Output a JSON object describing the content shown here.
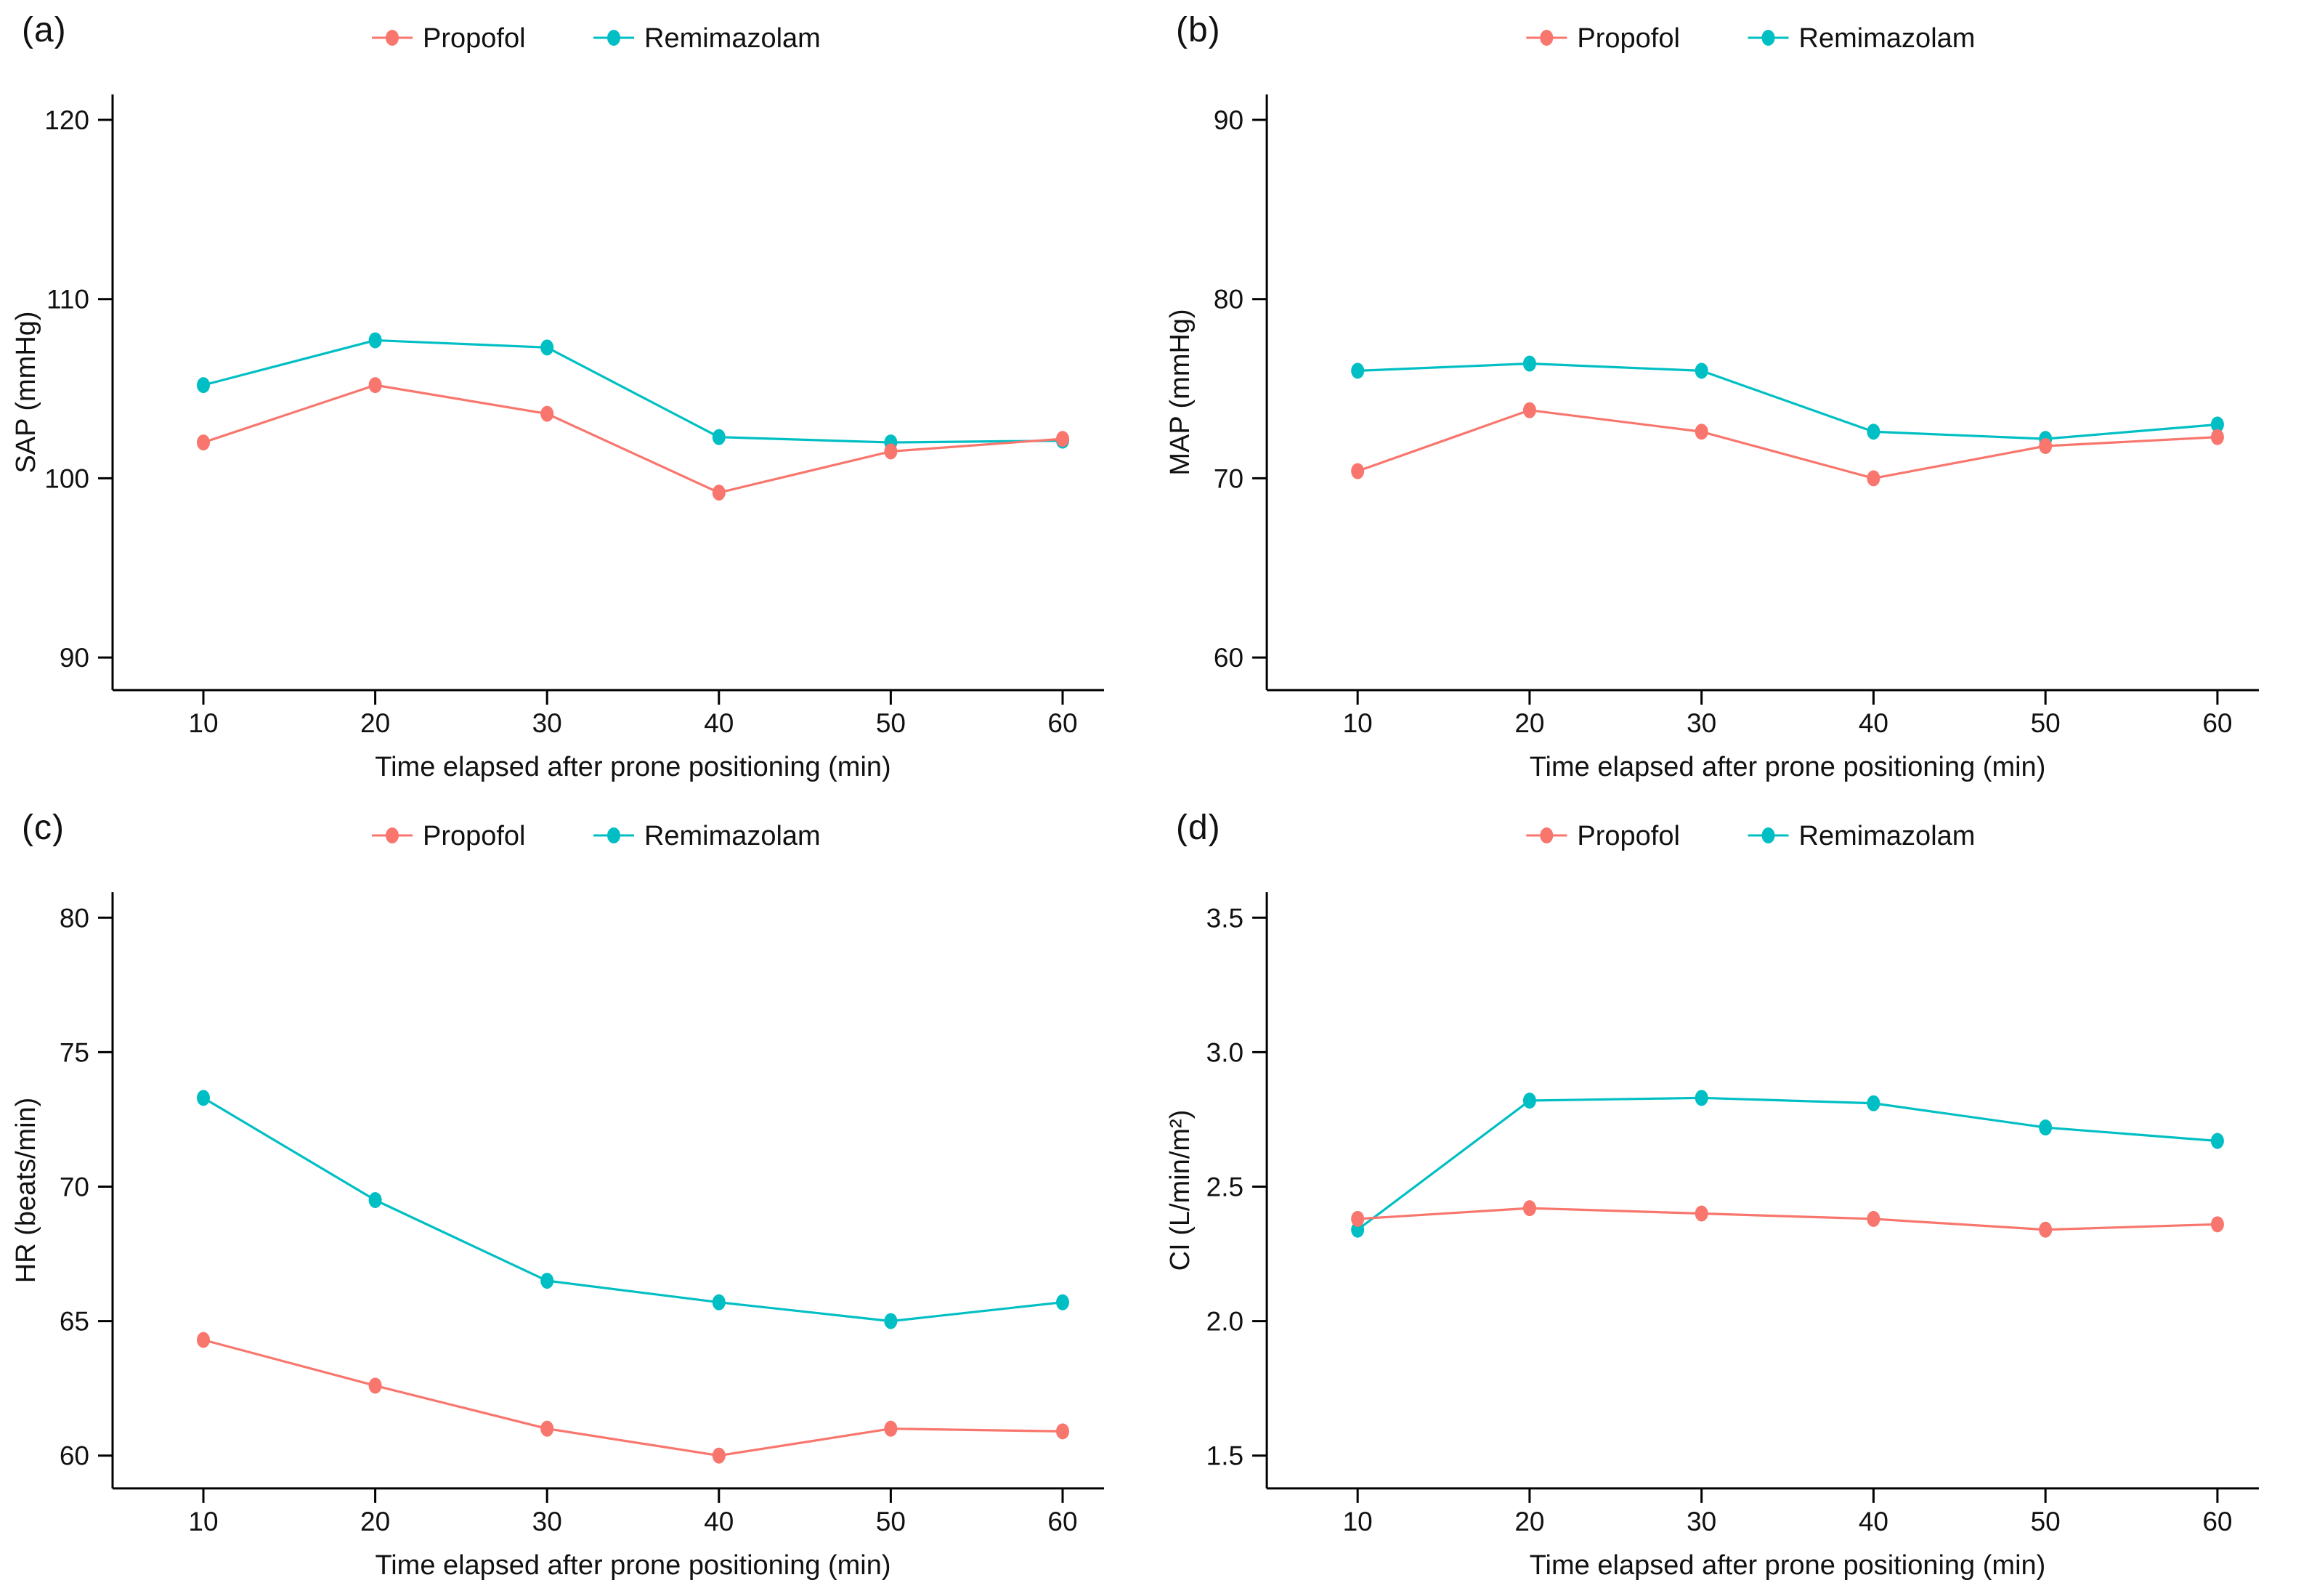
{
  "figure": {
    "background": "#ffffff",
    "axis_color": "#000000",
    "text_color": "#111111",
    "legend": [
      {
        "label": "Propofol",
        "color": "#F8766D"
      },
      {
        "label": "Remimazolam",
        "color": "#00BFC4"
      }
    ]
  },
  "chart_data": [
    {
      "type": "line",
      "panel": "(a)",
      "ylabel": "SAP (mmHg)",
      "xlabel": "Time elapsed after prone positioning (min)",
      "x": [
        10,
        20,
        30,
        40,
        50,
        60
      ],
      "xtick_labels": [
        "10",
        "20",
        "30",
        "40",
        "50",
        "60"
      ],
      "yticks": [
        90,
        100,
        110,
        120
      ],
      "ytick_labels": [
        "90",
        "100",
        "110",
        "120"
      ],
      "ylim": [
        88.18,
        121.42
      ],
      "grid": false,
      "legend_position": "top",
      "series": [
        {
          "name": "Propofol",
          "color": "#F8766D",
          "values": [
            102.0,
            105.2,
            103.6,
            99.2,
            101.5,
            102.2
          ]
        },
        {
          "name": "Remimazolam",
          "color": "#00BFC4",
          "values": [
            105.2,
            107.7,
            107.3,
            102.3,
            102.0,
            102.1
          ]
        }
      ]
    },
    {
      "type": "line",
      "panel": "(b)",
      "ylabel": "MAP (mmHg)",
      "xlabel": "Time elapsed after prone positioning (min)",
      "x": [
        10,
        20,
        30,
        40,
        50,
        60
      ],
      "xtick_labels": [
        "10",
        "20",
        "30",
        "40",
        "50",
        "60"
      ],
      "yticks": [
        60,
        70,
        80,
        90
      ],
      "ytick_labels": [
        "60",
        "70",
        "80",
        "90"
      ],
      "ylim": [
        58.18,
        91.42
      ],
      "grid": false,
      "legend_position": "top",
      "series": [
        {
          "name": "Propofol",
          "color": "#F8766D",
          "values": [
            70.4,
            73.8,
            72.6,
            70.0,
            71.8,
            72.3
          ]
        },
        {
          "name": "Remimazolam",
          "color": "#00BFC4",
          "values": [
            76.0,
            76.4,
            76.0,
            72.6,
            72.2,
            73.0
          ]
        }
      ]
    },
    {
      "type": "line",
      "panel": "(c)",
      "ylabel": "HR (beats/min)",
      "xlabel": "Time elapsed after prone positioning (min)",
      "x": [
        10,
        20,
        30,
        40,
        50,
        60
      ],
      "xtick_labels": [
        "10",
        "20",
        "30",
        "40",
        "50",
        "60"
      ],
      "yticks": [
        60,
        65,
        70,
        75,
        80
      ],
      "ytick_labels": [
        "60",
        "65",
        "70",
        "75",
        "80"
      ],
      "ylim": [
        58.78,
        80.95
      ],
      "grid": false,
      "legend_position": "top",
      "series": [
        {
          "name": "Propofol",
          "color": "#F8766D",
          "values": [
            64.3,
            62.6,
            61.0,
            60.0,
            61.0,
            60.9
          ]
        },
        {
          "name": "Remimazolam",
          "color": "#00BFC4",
          "values": [
            73.3,
            69.5,
            66.5,
            65.7,
            65.0,
            65.7
          ]
        }
      ]
    },
    {
      "type": "line",
      "panel": "(d)",
      "ylabel": "CI (L/min/m²)",
      "xlabel": "Time elapsed after prone positioning (min)",
      "x": [
        10,
        20,
        30,
        40,
        50,
        60
      ],
      "xtick_labels": [
        "10",
        "20",
        "30",
        "40",
        "50",
        "60"
      ],
      "yticks": [
        1.5,
        2.0,
        2.5,
        3.0,
        3.5
      ],
      "ytick_labels": [
        "1.5",
        "2.0",
        "2.5",
        "3.0",
        "3.5"
      ],
      "ylim": [
        1.378,
        3.595
      ],
      "grid": false,
      "legend_position": "top",
      "series": [
        {
          "name": "Propofol",
          "color": "#F8766D",
          "values": [
            2.38,
            2.42,
            2.4,
            2.38,
            2.34,
            2.36
          ]
        },
        {
          "name": "Remimazolam",
          "color": "#00BFC4",
          "values": [
            2.34,
            2.82,
            2.83,
            2.81,
            2.72,
            2.67
          ]
        }
      ]
    }
  ]
}
